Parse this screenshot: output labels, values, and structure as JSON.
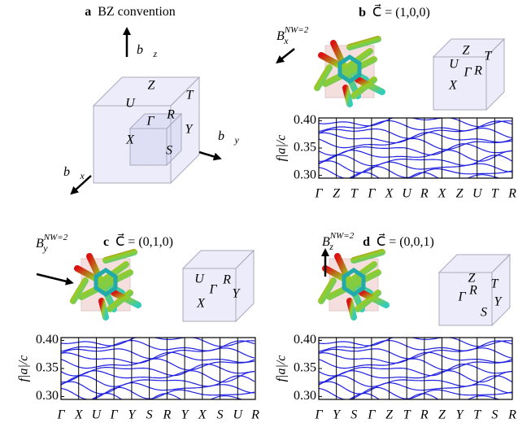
{
  "panels": [
    {
      "letter": "a",
      "title": "BZ convention",
      "points": [
        "Z",
        "U",
        "T",
        "Γ",
        "R",
        "X",
        "Y",
        "S"
      ],
      "axes": [
        {
          "base": "b⃗",
          "sub": "z"
        },
        {
          "base": "b⃗",
          "sub": "y"
        },
        {
          "base": "b⃗",
          "sub": "x"
        }
      ]
    },
    {
      "letter": "b",
      "title": "C⃗ = (1,0,0)",
      "field": {
        "base": "B",
        "sub": "x",
        "sup": "NW=2"
      },
      "points": [
        "Z",
        "T",
        "U",
        "Γ",
        "R",
        "X"
      ],
      "ylabel": "f|a|/c",
      "ylim": [
        0.295,
        0.405
      ],
      "yticks": [
        {
          "value": 0.3,
          "label": "0.30"
        },
        {
          "value": 0.35,
          "label": "0.35"
        },
        {
          "value": 0.4,
          "label": "0.40"
        }
      ],
      "kpath": [
        "Γ",
        "Z",
        "T",
        "Γ",
        "X",
        "U",
        "R",
        "X",
        "Z",
        "U",
        "T",
        "R"
      ]
    },
    {
      "letter": "c",
      "title": "C⃗ = (0,1,0)",
      "field": {
        "base": "B",
        "sub": "y",
        "sup": "NW=2"
      },
      "points": [
        "U",
        "R",
        "Γ",
        "Y",
        "X"
      ],
      "ylabel": "f|a|/c",
      "ylim": [
        0.295,
        0.405
      ],
      "yticks": [
        {
          "value": 0.3,
          "label": "0.30"
        },
        {
          "value": 0.35,
          "label": "0.35"
        },
        {
          "value": 0.4,
          "label": "0.40"
        }
      ],
      "kpath": [
        "Γ",
        "X",
        "U",
        "Γ",
        "Y",
        "S",
        "R",
        "Y",
        "X",
        "S",
        "U",
        "R"
      ]
    },
    {
      "letter": "d",
      "title": "C⃗ = (0,0,1)",
      "field": {
        "base": "B",
        "sub": "z",
        "sup": "NW=2"
      },
      "points": [
        "Z",
        "T",
        "Γ",
        "R",
        "Y",
        "S"
      ],
      "ylabel": "f|a|/c",
      "ylim": [
        0.295,
        0.405
      ],
      "yticks": [
        {
          "value": 0.3,
          "label": "0.30"
        },
        {
          "value": 0.35,
          "label": "0.35"
        },
        {
          "value": 0.4,
          "label": "0.40"
        }
      ],
      "kpath": [
        "Γ",
        "Y",
        "S",
        "Γ",
        "Z",
        "T",
        "R",
        "Z",
        "Y",
        "T",
        "S",
        "R"
      ]
    }
  ]
}
